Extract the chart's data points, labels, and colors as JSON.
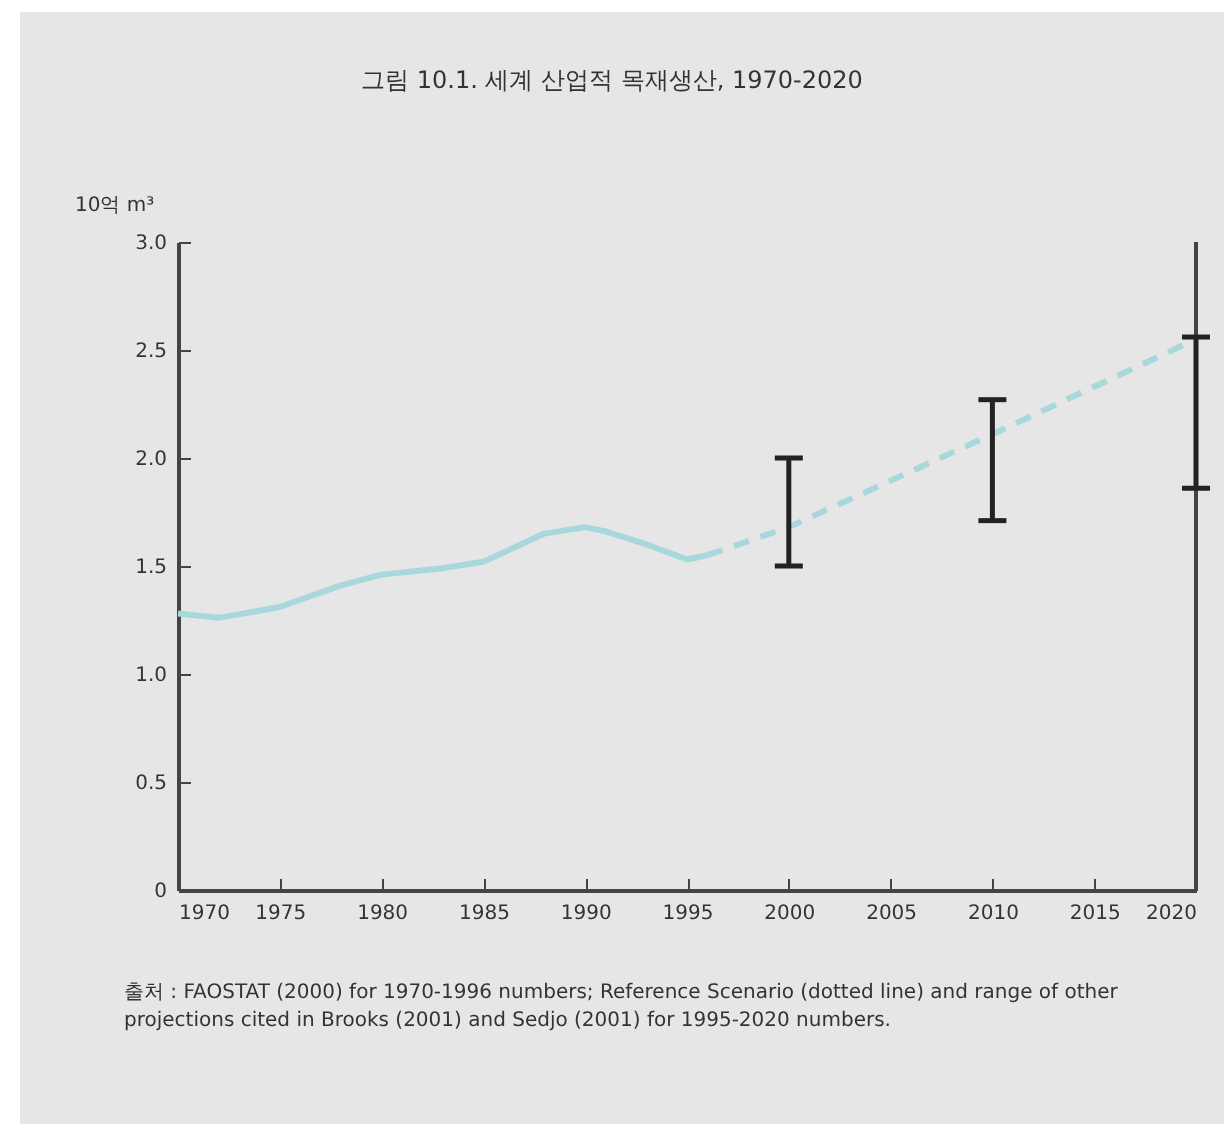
{
  "chart_data": {
    "type": "line",
    "title": "그림 10.1. 세계 산업적 목재생산, 1970-2020",
    "ylabel": "10억 m³",
    "annotations": [
      "출처 : FAOSTAT (2000) for 1970-1996 numbers; Reference Scenario (dotted line) and range of other projections cited in Brooks (2001) and Sedjo (2001) for 1995-2020 numbers."
    ],
    "series": [
      {
        "color": "#a8d8dc",
        "line_style": "solid",
        "x": [
          1970,
          1972,
          1975,
          1978,
          1980,
          1983,
          1985,
          1988,
          1990,
          1991,
          1993,
          1995,
          1996
        ],
        "values": [
          1.28,
          1.26,
          1.31,
          1.41,
          1.46,
          1.49,
          1.52,
          1.65,
          1.68,
          1.66,
          1.6,
          1.53,
          1.55
        ]
      },
      {
        "color": "#a8d8dc",
        "line_style": "dashed",
        "x": [
          1996,
          2000,
          2010,
          2020
        ],
        "values": [
          1.55,
          1.68,
          2.11,
          2.55
        ],
        "errors": [
          null,
          [
            1.5,
            2.0
          ],
          [
            1.71,
            2.27
          ],
          [
            1.86,
            2.56
          ]
        ]
      }
    ],
    "xlim": [
      1970,
      2020
    ],
    "xticks": [
      1970,
      1975,
      1980,
      1985,
      1990,
      1995,
      2000,
      2005,
      2010,
      2015,
      2020
    ],
    "ylim": [
      0,
      3
    ],
    "yticks": [
      0,
      0.5,
      {
        "value": 1,
        "label": "1.0"
      },
      1.5,
      {
        "value": 2,
        "label": "2.0"
      },
      2.5,
      {
        "value": 3,
        "label": "3.0"
      }
    ],
    "grid": false,
    "marker": "none"
  }
}
